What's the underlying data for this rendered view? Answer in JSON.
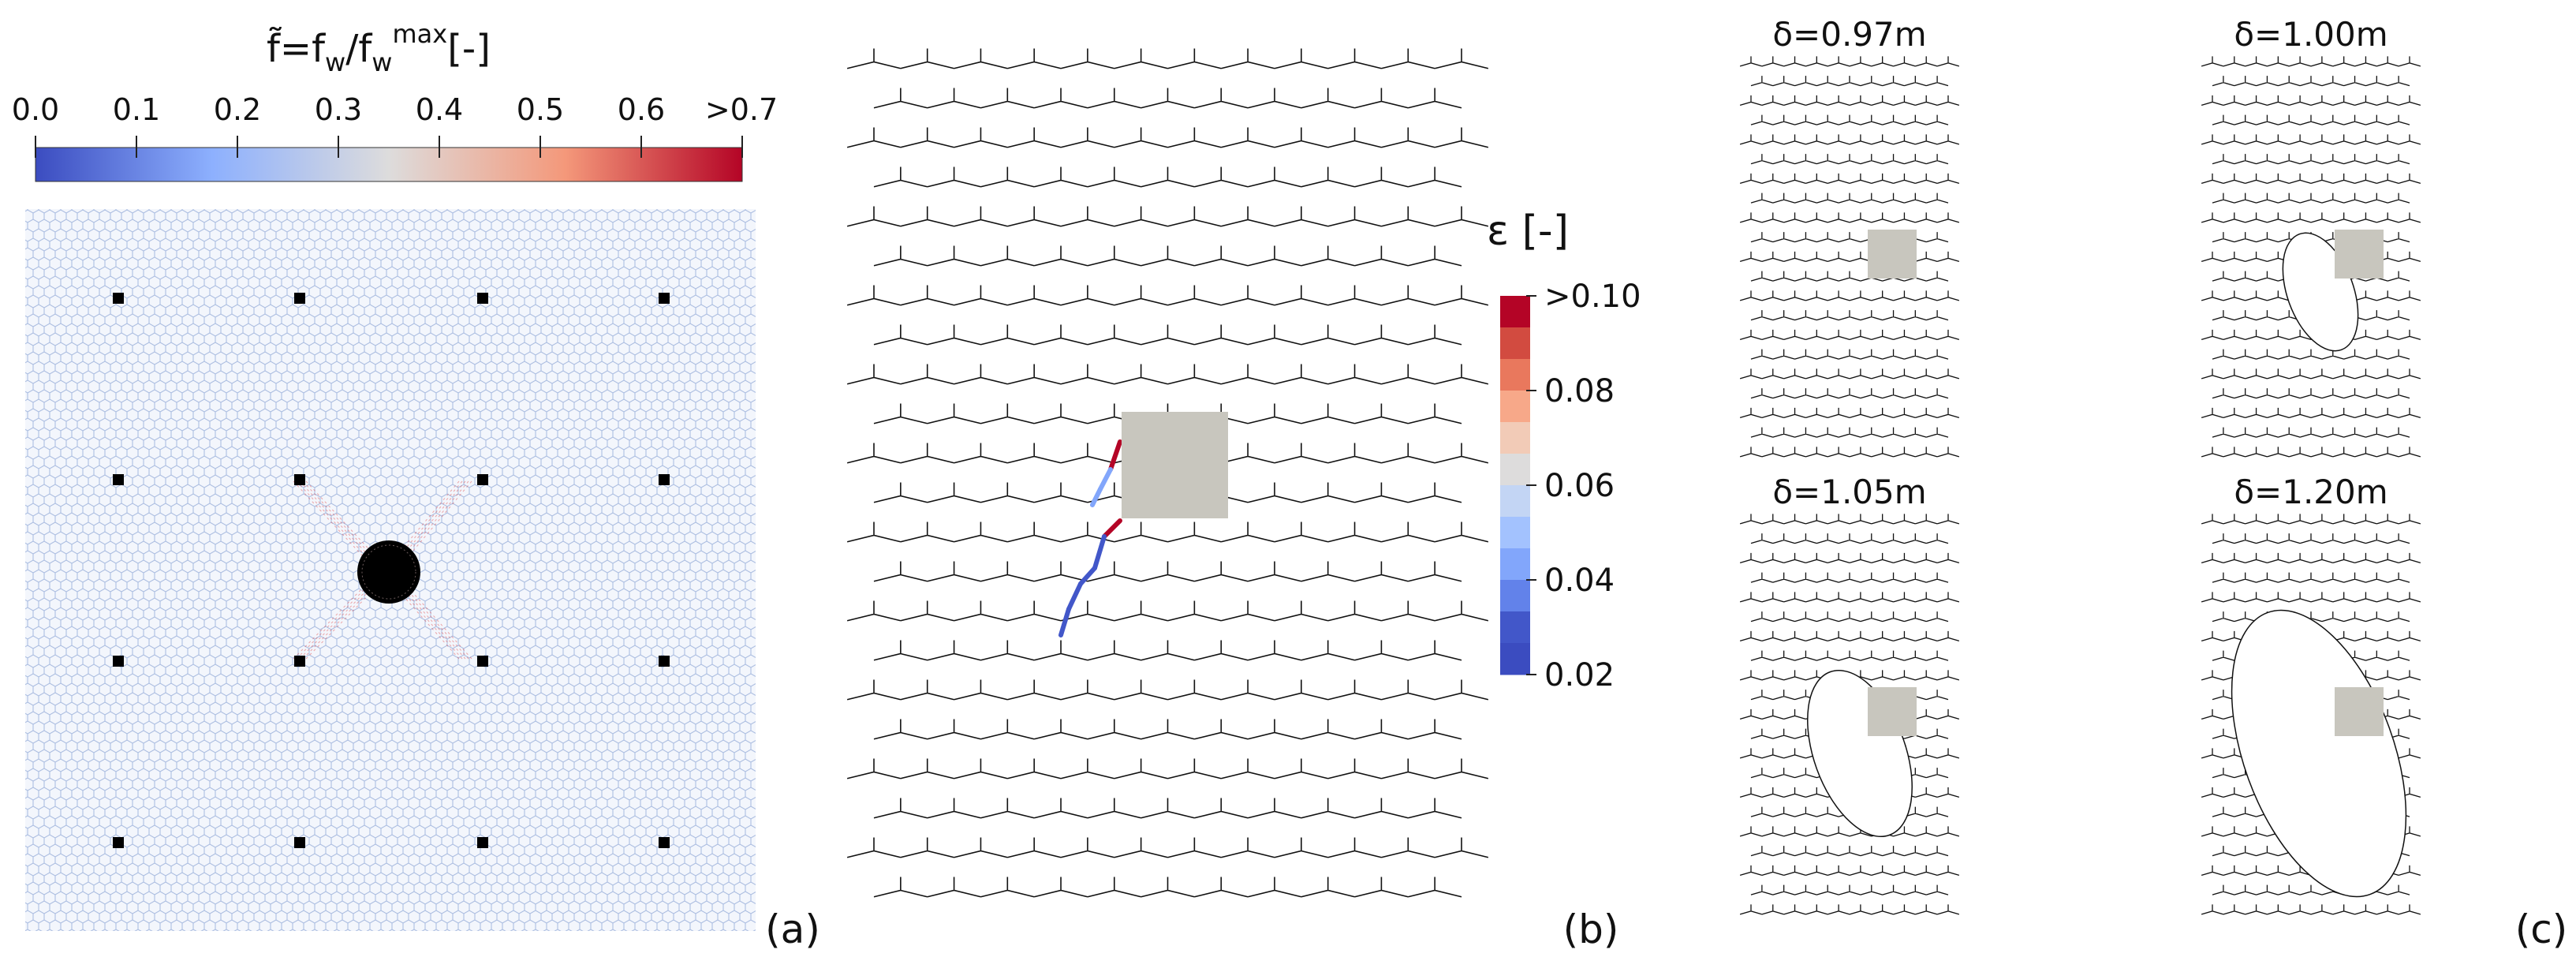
{
  "panel_a": {
    "panel_label": "(a)",
    "colorbar": {
      "title_base": "f̃=f",
      "title_sub1": "w",
      "title_mid": "/f",
      "title_sub2": "w",
      "title_sup": "max",
      "title_unit": "[-]",
      "ticks": [
        "0.0",
        "0.1",
        "0.2",
        "0.3",
        "0.4",
        "0.5",
        "0.6",
        ">0.7"
      ],
      "colors": [
        "#3b4cc0",
        "#8db0fe",
        "#dddcdc",
        "#f4987a",
        "#b40426"
      ]
    },
    "mesh_color": "#9fb4dc",
    "support_color": "#000000",
    "rock_color": "#000000",
    "stress_line_color": "#e04040"
  },
  "panel_b": {
    "panel_label": "(b)",
    "colorbar": {
      "title": "ε [-]",
      "ticks": [
        ">0.10",
        "0.08",
        "0.06",
        "0.04",
        "0.02"
      ],
      "bands": [
        "#b40426",
        "#d24b40",
        "#e9785d",
        "#f7a889",
        "#f2cbb7",
        "#dddcdc",
        "#c3d5f4",
        "#a3c2fe",
        "#82a6fb",
        "#6282ea",
        "#4257c9",
        "#3b4cc0"
      ]
    },
    "block_color": "#c8c6be"
  },
  "panel_c": {
    "panel_label": "(c)",
    "snapshots": [
      {
        "label": "δ=0.97m"
      },
      {
        "label": "δ=1.00m"
      },
      {
        "label": "δ=1.05m"
      },
      {
        "label": "δ=1.20m"
      }
    ],
    "block_color": "#c8c6be"
  }
}
